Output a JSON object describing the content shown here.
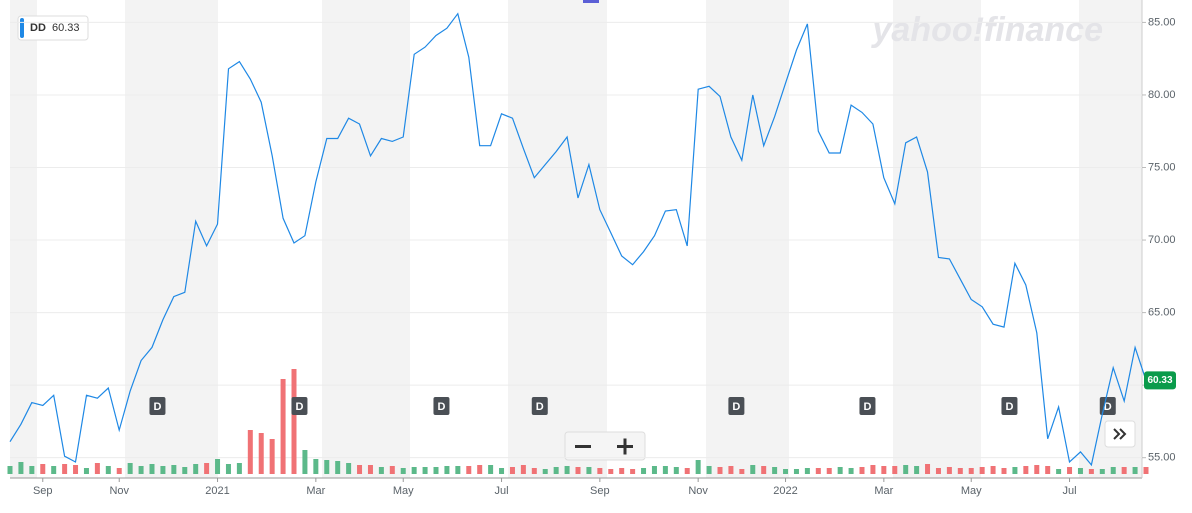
{
  "chart_data": {
    "type": "line",
    "symbol": "DD",
    "last_price": 60.33,
    "watermark": "yahoo!finance",
    "dividend_label": "D",
    "categories": [
      null,
      null,
      null,
      "Sep",
      null,
      null,
      null,
      null,
      null,
      null,
      "Nov",
      null,
      null,
      null,
      null,
      null,
      null,
      null,
      null,
      "2021",
      null,
      null,
      null,
      null,
      null,
      null,
      null,
      null,
      "Mar",
      null,
      null,
      null,
      null,
      null,
      null,
      null,
      "May",
      null,
      null,
      null,
      null,
      null,
      null,
      null,
      null,
      "Jul",
      null,
      null,
      null,
      null,
      null,
      null,
      null,
      null,
      "Sep",
      null,
      null,
      null,
      null,
      null,
      null,
      null,
      null,
      "Nov",
      null,
      null,
      null,
      null,
      null,
      null,
      null,
      "2022",
      null,
      null,
      null,
      null,
      null,
      null,
      null,
      null,
      "Mar",
      null,
      null,
      null,
      null,
      null,
      null,
      null,
      "May",
      null,
      null,
      null,
      null,
      null,
      null,
      null,
      null,
      "Jul",
      null,
      null,
      null,
      null,
      null,
      null,
      null
    ],
    "series": [
      {
        "name": "DD",
        "color": "#1e88e5",
        "values": [
          56.1,
          57.3,
          58.8,
          58.6,
          59.3,
          55.1,
          54.7,
          59.3,
          59.1,
          59.8,
          56.9,
          59.6,
          61.7,
          62.6,
          64.5,
          66.1,
          66.4,
          71.3,
          69.6,
          71.1,
          81.8,
          82.3,
          81.1,
          79.5,
          75.8,
          71.5,
          69.8,
          70.3,
          74.0,
          77.0,
          77.0,
          78.4,
          78.0,
          75.8,
          77.0,
          76.8,
          77.1,
          82.8,
          83.3,
          84.1,
          84.6,
          85.6,
          82.6,
          76.5,
          76.5,
          78.7,
          78.4,
          76.3,
          74.3,
          75.2,
          76.1,
          77.1,
          72.9,
          75.2,
          72.1,
          70.5,
          68.9,
          68.3,
          69.2,
          70.3,
          72.0,
          72.1,
          69.6,
          80.4,
          80.6,
          79.9,
          77.1,
          75.5,
          80.0,
          76.5,
          78.5,
          80.8,
          83.1,
          84.9,
          77.5,
          76.0,
          76.0,
          79.3,
          78.8,
          78.0,
          74.3,
          72.5,
          76.7,
          77.1,
          74.7,
          68.8,
          68.7,
          67.3,
          65.9,
          65.4,
          64.2,
          64.0,
          68.4,
          66.9,
          63.6,
          56.3,
          58.5,
          54.7,
          55.4,
          54.5,
          58.0,
          61.2,
          58.9,
          62.6,
          60.33
        ]
      }
    ],
    "volume": [
      8,
      12,
      8,
      10,
      8,
      10,
      9,
      6,
      11,
      8,
      6,
      11,
      8,
      10,
      8,
      9,
      7,
      10,
      11,
      15,
      10,
      11,
      44,
      41,
      35,
      95,
      105,
      24,
      15,
      14,
      13,
      11,
      9,
      9,
      7,
      8,
      6,
      7,
      7,
      7,
      8,
      8,
      8,
      9,
      9,
      6,
      7,
      9,
      6,
      5,
      7,
      8,
      7,
      7,
      6,
      5,
      6,
      5,
      6,
      8,
      8,
      7,
      6,
      14,
      8,
      7,
      8,
      5,
      9,
      8,
      7,
      5,
      5,
      6,
      6,
      6,
      7,
      6,
      7,
      9,
      8,
      8,
      9,
      8,
      10,
      6,
      7,
      6,
      6,
      7,
      8,
      6,
      7,
      8,
      9,
      8,
      5,
      7,
      6,
      5,
      5,
      7,
      7,
      7,
      7
    ],
    "up_color": "#5cb98a",
    "down_color": "#f07275",
    "ylim": [
      53.6,
      86.2
    ],
    "yticks": [
      {
        "value": 55,
        "label": "55.00"
      },
      {
        "value": 60,
        "label": "60.00"
      },
      {
        "value": 65,
        "label": "65.00"
      },
      {
        "value": 70,
        "label": "70.00"
      },
      {
        "value": 75,
        "label": "75.00"
      },
      {
        "value": 80,
        "label": "80.00"
      },
      {
        "value": 85,
        "label": "85.00"
      }
    ],
    "grid": true
  }
}
